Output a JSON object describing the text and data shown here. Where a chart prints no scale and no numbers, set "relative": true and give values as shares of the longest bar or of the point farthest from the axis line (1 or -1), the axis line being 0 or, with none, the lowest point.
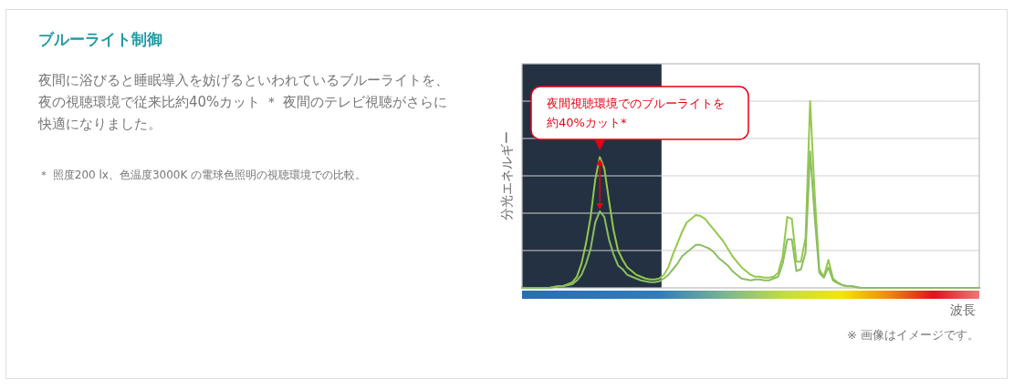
{
  "chart_data": {
    "type": "line",
    "title": "ブルーライト制御",
    "subtitle": "夜間に浴びると睡眠導入を妨げるといわれているブルーライトを、夜の視聴環境で従来比約40%カット ＊ 夜間のテレビ視聴がさらに快適になりました。",
    "ylabel": "分光エネルギー",
    "xlabel": "波長",
    "relative": true,
    "categories": [
      null,
      null,
      null,
      null,
      null,
      null,
      null,
      null,
      null,
      null,
      null,
      null,
      null,
      null,
      null,
      null,
      null,
      null,
      null,
      null,
      null,
      null,
      null,
      null,
      null,
      null,
      null,
      null,
      null,
      null,
      null,
      null,
      null,
      null,
      null,
      null,
      null,
      null,
      null,
      null,
      null,
      null,
      null,
      null,
      null,
      null,
      null,
      null,
      null,
      null,
      null,
      null,
      null,
      null,
      null,
      null,
      null,
      null,
      null,
      null,
      null,
      null,
      null,
      null,
      null,
      null,
      null,
      null,
      null,
      null,
      null,
      null,
      null,
      null,
      null,
      null,
      null,
      null,
      null,
      null,
      null,
      null,
      null,
      null,
      null,
      null,
      null,
      null,
      null,
      null,
      null,
      null,
      null,
      null,
      null,
      null,
      null,
      null,
      null,
      null,
      null
    ],
    "series": [
      {
        "color": "#94c94a",
        "values": [
          0,
          0,
          0,
          0,
          0,
          0,
          0,
          0.005,
          0.01,
          0.01,
          0.02,
          0.03,
          0.06,
          0.13,
          0.24,
          0.38,
          0.58,
          0.7,
          0.64,
          0.47,
          0.31,
          0.2,
          0.15,
          0.11,
          0.09,
          0.07,
          0.06,
          0.05,
          0.045,
          0.045,
          0.05,
          0.07,
          0.11,
          0.18,
          0.24,
          0.3,
          0.35,
          0.37,
          0.39,
          0.385,
          0.37,
          0.34,
          0.31,
          0.28,
          0.25,
          0.21,
          0.17,
          0.14,
          0.11,
          0.09,
          0.07,
          0.06,
          0.06,
          0.055,
          0.055,
          0.06,
          0.08,
          0.17,
          0.38,
          0.37,
          0.14,
          0.14,
          0.27,
          1,
          0.5,
          0.1,
          0.06,
          0.15,
          0.05,
          0.03,
          0.015,
          0.01,
          0.01,
          0.005,
          0,
          0,
          0,
          0,
          0,
          0,
          0,
          0,
          0,
          0,
          0,
          0,
          0,
          0,
          0,
          0,
          0,
          0,
          0,
          0,
          0,
          0,
          0,
          0,
          0,
          0,
          0
        ]
      },
      {
        "color": "#8bbd62",
        "values": [
          0,
          0,
          0,
          0,
          0,
          0,
          0,
          0.005,
          0.01,
          0.01,
          0.015,
          0.02,
          0.04,
          0.07,
          0.13,
          0.21,
          0.35,
          0.41,
          0.38,
          0.26,
          0.18,
          0.12,
          0.1,
          0.07,
          0.06,
          0.05,
          0.04,
          0.035,
          0.03,
          0.03,
          0.035,
          0.05,
          0.07,
          0.1,
          0.13,
          0.17,
          0.19,
          0.21,
          0.23,
          0.23,
          0.22,
          0.21,
          0.19,
          0.16,
          0.14,
          0.12,
          0.09,
          0.07,
          0.05,
          0.045,
          0.04,
          0.045,
          0.045,
          0.04,
          0.04,
          0.05,
          0.06,
          0.13,
          0.26,
          0.26,
          0.09,
          0.1,
          0.19,
          0.73,
          0.38,
          0.08,
          0.055,
          0.11,
          0.04,
          0.025,
          0.015,
          0.01,
          0.008,
          0.005,
          0,
          0,
          0,
          0,
          0,
          0,
          0,
          0,
          0,
          0,
          0,
          0,
          0,
          0,
          0,
          0,
          0,
          0,
          0,
          0,
          0,
          0,
          0,
          0,
          0,
          0,
          0
        ]
      }
    ],
    "ref_lines": [
      {
        "axis": "y",
        "value": 0.2,
        "color": "#cfcfcf"
      },
      {
        "axis": "y",
        "value": 0.4,
        "color": "#cfcfcf"
      },
      {
        "axis": "y",
        "value": 0.6,
        "color": "#cfcfcf"
      },
      {
        "axis": "y",
        "value": 0.8,
        "color": "#cfcfcf"
      },
      {
        "axis": "y",
        "value": 1,
        "color": "#cfcfcf"
      }
    ],
    "annotations": [
      "夜間視聴環境でのブルーライトを約40%カット*",
      "＊ 照度200 lx、色温度3000K の電球色照明の視聴環境での比較。",
      "※ 画像はイメージです。"
    ]
  }
}
